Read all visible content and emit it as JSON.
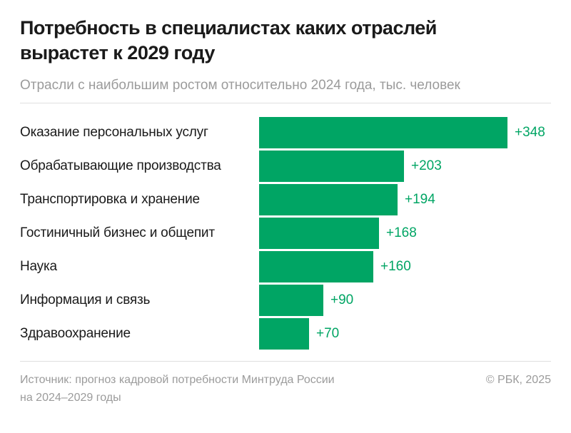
{
  "header": {
    "title": "Потребность в специалистах каких отраслей вырастет к 2029 году",
    "subtitle": "Отрасли с наибольшим ростом относительно 2024 года, тыс. человек"
  },
  "chart_data": {
    "type": "bar",
    "orientation": "horizontal",
    "title": "Потребность в специалистах каких отраслей вырастет к 2029 году",
    "subtitle": "Отрасли с наибольшим ростом относительно 2024 года, тыс. человек",
    "unit": "тыс. человек",
    "categories": [
      "Оказание персональных услуг",
      "Обрабатывающие производства",
      "Транспортировка и хранение",
      "Гостиничный бизнес и общепит",
      "Наука",
      "Информация и связь",
      "Здравоохранение"
    ],
    "values": [
      348,
      203,
      194,
      168,
      160,
      90,
      70
    ],
    "value_labels": [
      "+348",
      "+203",
      "+194",
      "+168",
      "+160",
      "+90",
      "+70"
    ],
    "xlim": [
      0,
      409
    ],
    "grid": false,
    "legend": false,
    "bar_color": "#00a564",
    "value_label_color": "#00a564"
  },
  "footer": {
    "source_line1": "Источник: прогноз кадровой потребности Минтруда России",
    "source_line2": "на 2024–2029 годы",
    "copyright": "© РБК, 2025"
  },
  "colors": {
    "accent_green": "#00a564",
    "title_text": "#1a1a1a",
    "muted_text": "#9b9b9b",
    "divider": "#dfdfdf",
    "background": "#ffffff"
  }
}
